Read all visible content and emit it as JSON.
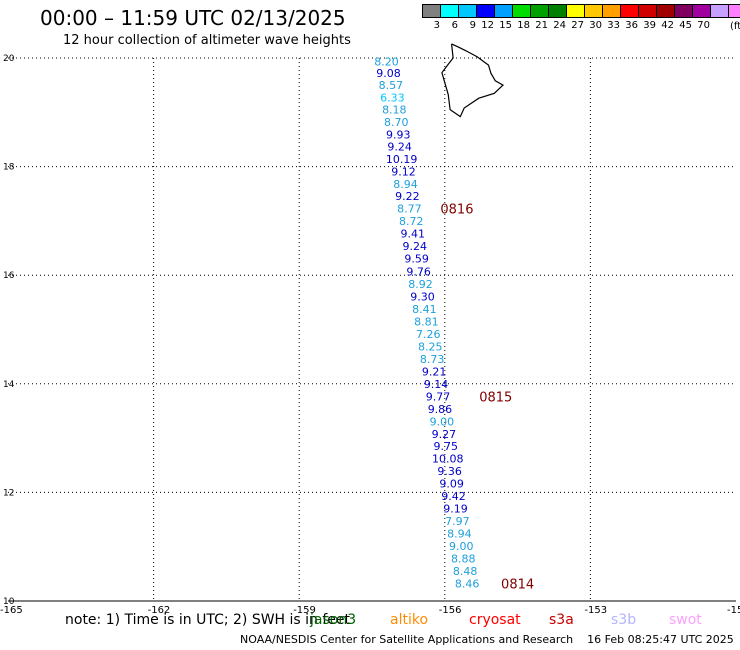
{
  "header": {
    "title": "00:00 – 11:59 UTC 02/13/2025",
    "subtitle": "12 hour collection of altimeter wave heights"
  },
  "color_scale": {
    "colors": [
      "#808080",
      "#00ffff",
      "#00c8ff",
      "#0000ff",
      "#00a0ff",
      "#00dc00",
      "#00a000",
      "#008000",
      "#ffff00",
      "#ffc800",
      "#ffa000",
      "#ff0000",
      "#d00000",
      "#a00000",
      "#800060",
      "#a000a0",
      "#c8a0ff",
      "#ff80ff",
      "#000000"
    ],
    "labels": [
      "3",
      "6",
      "9",
      "12",
      "15",
      "18",
      "21",
      "24",
      "27",
      "30",
      "33",
      "36",
      "39",
      "42",
      "45",
      "70"
    ],
    "unit": "(ft)"
  },
  "axes": {
    "lon_ticks": [
      "-165",
      "-162",
      "-159",
      "-156",
      "-153",
      "-150"
    ],
    "lat_ticks": [
      "20",
      "18",
      "16",
      "14",
      "12",
      "10"
    ]
  },
  "track": [
    {
      "lon": -157.2,
      "lat": 19.94,
      "text": "8.20",
      "color": "#1ea0dc"
    },
    {
      "lon": -157.16,
      "lat": 19.72,
      "text": "9.08",
      "color": "#0000c8"
    },
    {
      "lon": -157.11,
      "lat": 19.5,
      "text": "8.57",
      "color": "#1ea0dc"
    },
    {
      "lon": -157.08,
      "lat": 19.27,
      "text": "6.33",
      "color": "#00c8ff"
    },
    {
      "lon": -157.04,
      "lat": 19.05,
      "text": "8.18",
      "color": "#1ea0dc"
    },
    {
      "lon": -157.0,
      "lat": 18.82,
      "text": "8.70",
      "color": "#1ea0dc"
    },
    {
      "lon": -156.96,
      "lat": 18.59,
      "text": "9.93",
      "color": "#0000c8"
    },
    {
      "lon": -156.93,
      "lat": 18.37,
      "text": "9.24",
      "color": "#0000c8"
    },
    {
      "lon": -156.89,
      "lat": 18.14,
      "text": "10.19",
      "color": "#0000c8"
    },
    {
      "lon": -156.85,
      "lat": 17.91,
      "text": "9.12",
      "color": "#0000c8"
    },
    {
      "lon": -156.81,
      "lat": 17.68,
      "text": "8.94",
      "color": "#1ea0dc"
    },
    {
      "lon": -156.77,
      "lat": 17.46,
      "text": "9.22",
      "color": "#0000c8"
    },
    {
      "lon": -156.73,
      "lat": 17.23,
      "text": "8.77",
      "color": "#1ea0dc"
    },
    {
      "lon": -156.69,
      "lat": 17.0,
      "text": "8.72",
      "color": "#1ea0dc"
    },
    {
      "lon": -156.66,
      "lat": 16.77,
      "text": "9.41",
      "color": "#0000c8"
    },
    {
      "lon": -156.62,
      "lat": 16.54,
      "text": "9.24",
      "color": "#0000c8"
    },
    {
      "lon": -156.58,
      "lat": 16.31,
      "text": "9.59",
      "color": "#0000c8"
    },
    {
      "lon": -156.54,
      "lat": 16.07,
      "text": "9.76",
      "color": "#0000c8"
    },
    {
      "lon": -156.5,
      "lat": 15.84,
      "text": "8.92",
      "color": "#1ea0dc"
    },
    {
      "lon": -156.46,
      "lat": 15.61,
      "text": "9.30",
      "color": "#0000c8"
    },
    {
      "lon": -156.42,
      "lat": 15.38,
      "text": "8.41",
      "color": "#1ea0dc"
    },
    {
      "lon": -156.38,
      "lat": 15.15,
      "text": "8.81",
      "color": "#1ea0dc"
    },
    {
      "lon": -156.34,
      "lat": 14.92,
      "text": "7.26",
      "color": "#1ea0dc"
    },
    {
      "lon": -156.3,
      "lat": 14.69,
      "text": "8.25",
      "color": "#1ea0dc"
    },
    {
      "lon": -156.26,
      "lat": 14.46,
      "text": "8.73",
      "color": "#1ea0dc"
    },
    {
      "lon": -156.22,
      "lat": 14.23,
      "text": "9.21",
      "color": "#0000c8"
    },
    {
      "lon": -156.18,
      "lat": 14.0,
      "text": "9.14",
      "color": "#0000c8"
    },
    {
      "lon": -156.14,
      "lat": 13.77,
      "text": "9.77",
      "color": "#0000c8"
    },
    {
      "lon": -156.1,
      "lat": 13.54,
      "text": "9.86",
      "color": "#0000c8"
    },
    {
      "lon": -156.06,
      "lat": 13.31,
      "text": "9.00",
      "color": "#1ea0dc"
    },
    {
      "lon": -156.02,
      "lat": 13.08,
      "text": "9.27",
      "color": "#0000c8"
    },
    {
      "lon": -155.98,
      "lat": 12.85,
      "text": "9.75",
      "color": "#0000c8"
    },
    {
      "lon": -155.94,
      "lat": 12.62,
      "text": "10.08",
      "color": "#0000c8"
    },
    {
      "lon": -155.9,
      "lat": 12.39,
      "text": "9.36",
      "color": "#0000c8"
    },
    {
      "lon": -155.86,
      "lat": 12.16,
      "text": "9.09",
      "color": "#0000c8"
    },
    {
      "lon": -155.82,
      "lat": 11.93,
      "text": "9.42",
      "color": "#0000c8"
    },
    {
      "lon": -155.78,
      "lat": 11.7,
      "text": "9.19",
      "color": "#0000c8"
    },
    {
      "lon": -155.74,
      "lat": 11.47,
      "text": "7.97",
      "color": "#1ea0dc"
    },
    {
      "lon": -155.7,
      "lat": 11.24,
      "text": "8.94",
      "color": "#1ea0dc"
    },
    {
      "lon": -155.66,
      "lat": 11.01,
      "text": "9.00",
      "color": "#1ea0dc"
    },
    {
      "lon": -155.62,
      "lat": 10.78,
      "text": "8.88",
      "color": "#1ea0dc"
    },
    {
      "lon": -155.58,
      "lat": 10.55,
      "text": "8.48",
      "color": "#1ea0dc"
    },
    {
      "lon": -155.54,
      "lat": 10.32,
      "text": "8.46",
      "color": "#1ea0dc"
    }
  ],
  "time_labels": [
    {
      "lon": -155.75,
      "lat": 17.23,
      "text": "0816"
    },
    {
      "lon": -154.95,
      "lat": 13.77,
      "text": "0815"
    },
    {
      "lon": -154.5,
      "lat": 10.32,
      "text": "0814"
    }
  ],
  "time_label_color": "#800000",
  "coastline_lonlat": [
    [
      -155.86,
      20.26
    ],
    [
      -155.72,
      20.2
    ],
    [
      -155.56,
      20.13
    ],
    [
      -155.33,
      20.02
    ],
    [
      -155.1,
      19.87
    ],
    [
      -155.05,
      19.72
    ],
    [
      -154.96,
      19.58
    ],
    [
      -154.8,
      19.5
    ],
    [
      -154.98,
      19.35
    ],
    [
      -155.3,
      19.26
    ],
    [
      -155.6,
      19.08
    ],
    [
      -155.68,
      18.92
    ],
    [
      -155.89,
      19.05
    ],
    [
      -155.93,
      19.33
    ],
    [
      -156.06,
      19.73
    ],
    [
      -155.95,
      19.86
    ],
    [
      -155.83,
      20.0
    ],
    [
      -155.86,
      20.26
    ]
  ],
  "footer": {
    "note": "note: 1) Time is in UTC; 2) SWH is in feet",
    "satellites": [
      {
        "text": "jason3",
        "color": "#006400"
      },
      {
        "text": "altiko",
        "color": "#ff8c00"
      },
      {
        "text": "cryosat",
        "color": "#ff0000"
      },
      {
        "text": "s3a",
        "color": "#c80000"
      },
      {
        "text": "s3b",
        "color": "#b4b4ff"
      },
      {
        "text": "swot",
        "color": "#ffa0ff"
      }
    ],
    "credit": "NOAA/NESDIS Center for Satellite Applications and Research",
    "timestamp": "16 Feb 08:25:47 UTC 2025"
  }
}
